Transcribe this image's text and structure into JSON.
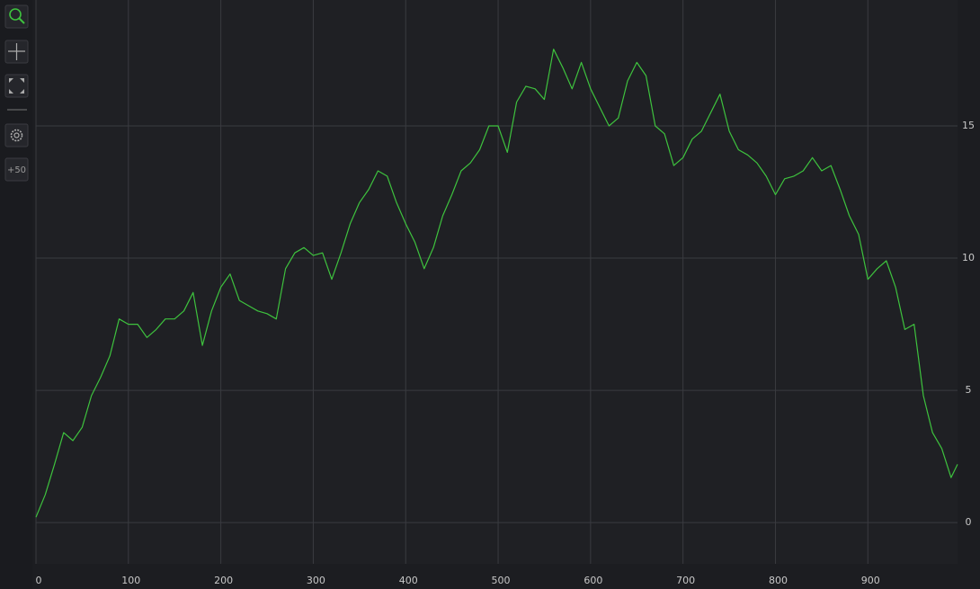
{
  "toolbar": {
    "append_label": "+50"
  },
  "chart_data": {
    "type": "line",
    "color": "#3ec23e",
    "grid": true,
    "x": [
      0,
      10,
      20,
      30,
      40,
      50,
      60,
      70,
      80,
      90,
      100,
      110,
      120,
      130,
      140,
      150,
      160,
      170,
      180,
      190,
      200,
      210,
      220,
      230,
      240,
      250,
      260,
      270,
      280,
      290,
      300,
      310,
      320,
      330,
      340,
      350,
      360,
      370,
      380,
      390,
      400,
      410,
      420,
      430,
      440,
      450,
      460,
      470,
      480,
      490,
      500,
      510,
      520,
      530,
      540,
      550,
      560,
      570,
      580,
      590,
      600,
      610,
      620,
      630,
      640,
      650,
      660,
      670,
      680,
      690,
      700,
      710,
      720,
      730,
      740,
      750,
      760,
      770,
      780,
      790,
      800,
      810,
      820,
      830,
      840,
      850,
      860,
      870,
      880,
      890,
      900,
      910,
      920,
      930,
      940,
      950,
      960,
      970,
      980,
      990,
      997
    ],
    "values": [
      0.2,
      1.05,
      2.2,
      3.4,
      3.1,
      3.6,
      4.8,
      5.5,
      6.3,
      7.7,
      7.5,
      7.5,
      7.0,
      7.3,
      7.7,
      7.7,
      8.0,
      8.7,
      6.7,
      8.0,
      8.9,
      9.4,
      8.4,
      8.2,
      8.0,
      7.9,
      7.7,
      9.6,
      10.2,
      10.4,
      10.1,
      10.2,
      9.2,
      10.2,
      11.3,
      12.1,
      12.6,
      13.3,
      13.1,
      12.1,
      11.3,
      10.6,
      9.6,
      10.4,
      11.6,
      12.4,
      13.3,
      13.6,
      14.1,
      15.0,
      15.0,
      14.0,
      15.9,
      16.5,
      16.4,
      16.0,
      17.9,
      17.2,
      16.4,
      17.4,
      16.4,
      15.7,
      15.0,
      15.3,
      16.7,
      17.4,
      16.9,
      15.0,
      14.7,
      13.5,
      13.8,
      14.5,
      14.8,
      15.5,
      16.2,
      14.8,
      14.1,
      13.9,
      13.6,
      13.1,
      12.4,
      13.0,
      13.1,
      13.3,
      13.8,
      13.3,
      13.5,
      12.6,
      11.6,
      10.9,
      9.2,
      9.6,
      9.9,
      8.9,
      7.3,
      7.5,
      4.8,
      3.4,
      2.8,
      1.7,
      2.2
    ],
    "xlim": [
      0,
      997
    ],
    "ylim": [
      -1.56,
      19.76
    ],
    "xticks": [
      0,
      100,
      200,
      300,
      400,
      500,
      600,
      700,
      800,
      900
    ],
    "yticks": [
      0,
      5,
      10,
      15
    ]
  }
}
